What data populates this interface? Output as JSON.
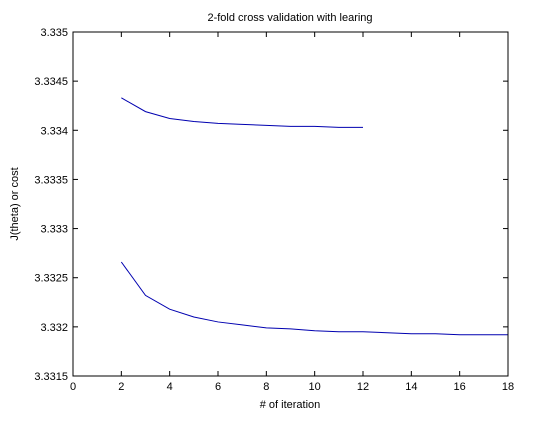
{
  "chart_data": {
    "type": "line",
    "title": "2-fold cross validation with learing",
    "xlabel": "# of iteration",
    "ylabel": "J(theta) or cost",
    "xlim": [
      0,
      18
    ],
    "ylim": [
      3.3315,
      3.335
    ],
    "xticks": [
      0,
      2,
      4,
      6,
      8,
      10,
      12,
      14,
      16,
      18
    ],
    "xtick_labels": [
      "0",
      "2",
      "4",
      "6",
      "8",
      "10",
      "12",
      "14",
      "16",
      "18"
    ],
    "yticks": [
      3.3315,
      3.332,
      3.3325,
      3.333,
      3.3335,
      3.334,
      3.3345,
      3.335
    ],
    "ytick_labels": [
      "3.3315",
      "3.332",
      "3.3325",
      "3.333",
      "3.3335",
      "3.334",
      "3.3345",
      "3.335"
    ],
    "grid": false,
    "box": true,
    "series": [
      {
        "color": "#0000b0",
        "x": [
          2,
          3,
          4,
          5,
          6,
          7,
          8,
          9,
          10,
          11,
          12
        ],
        "y": [
          3.33433,
          3.33419,
          3.33412,
          3.33409,
          3.33407,
          3.33406,
          3.33405,
          3.33404,
          3.33404,
          3.33403,
          3.33403
        ]
      },
      {
        "color": "#0000b0",
        "x": [
          2,
          3,
          4,
          5,
          6,
          7,
          8,
          9,
          10,
          11,
          12,
          13,
          14,
          15,
          16,
          17,
          18
        ],
        "y": [
          3.33266,
          3.33232,
          3.33218,
          3.3321,
          3.33205,
          3.33202,
          3.33199,
          3.33198,
          3.33196,
          3.33195,
          3.33195,
          3.33194,
          3.33193,
          3.33193,
          3.33192,
          3.33192,
          3.33192
        ]
      }
    ]
  }
}
